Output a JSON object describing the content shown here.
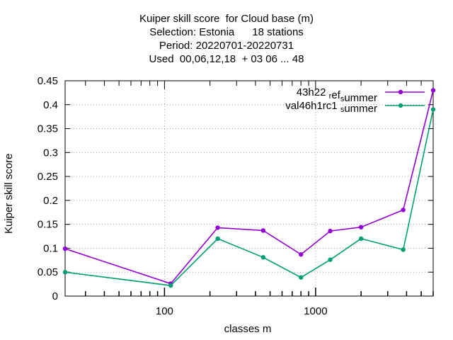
{
  "chart_data": {
    "type": "line",
    "title_lines": [
      "Kuiper skill score  for Cloud base (m)",
      "Selection: Estonia      18 stations",
      "Period: 20220701-20220731",
      "Used  00,06,12,18  + 03 06 ... 48"
    ],
    "xlabel": "classes m",
    "ylabel": "Kuiper skill score",
    "x_scale": "log",
    "xlim": [
      22,
      6000
    ],
    "ylim": [
      0,
      0.45
    ],
    "x_tick_labels": [
      {
        "value": 100,
        "label": "100"
      },
      {
        "value": 1000,
        "label": "1000"
      }
    ],
    "y_ticks": [
      0,
      0.05,
      0.1,
      0.15,
      0.2,
      0.25,
      0.3,
      0.35,
      0.4,
      0.45
    ],
    "y_tick_labels": [
      "0",
      "0.05",
      "0.1",
      "0.15",
      "0.2",
      "0.25",
      "0.3",
      "0.35",
      "0.4",
      "0.45"
    ],
    "grid": true,
    "legend_position": "top-right",
    "x": [
      22,
      110,
      225,
      450,
      800,
      1250,
      2000,
      3800,
      6000
    ],
    "series": [
      {
        "name": "43h22 _ref_summer",
        "legend_parts": [
          {
            "text": "43h22 ",
            "sub": false
          },
          {
            "text": "r",
            "sub": true
          },
          {
            "text": "ef",
            "sub": false
          },
          {
            "text": "s",
            "sub": true
          },
          {
            "text": "ummer",
            "sub": false
          }
        ],
        "color": "#9400d3",
        "values": [
          0.099,
          0.026,
          0.143,
          0.137,
          0.087,
          0.136,
          0.144,
          0.18,
          0.43
        ]
      },
      {
        "name": "val46h1rc1 _summer",
        "legend_parts": [
          {
            "text": "val46h1rc1 ",
            "sub": false
          },
          {
            "text": "s",
            "sub": true
          },
          {
            "text": "ummer",
            "sub": false
          }
        ],
        "color": "#009e73",
        "values": [
          0.05,
          0.022,
          0.12,
          0.081,
          0.039,
          0.076,
          0.12,
          0.097,
          0.39
        ]
      }
    ]
  }
}
